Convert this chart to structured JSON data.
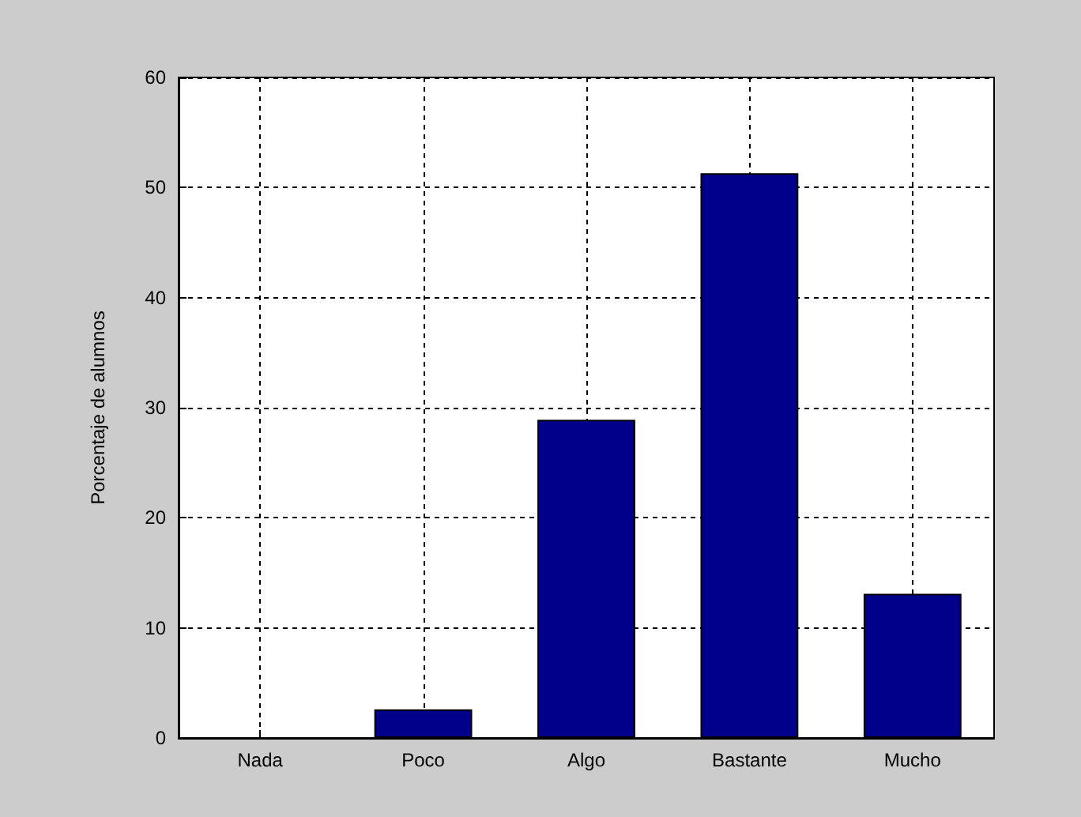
{
  "chart_data": {
    "type": "bar",
    "ylabel": "Porcentaje de alumnos",
    "categories": [
      "Nada",
      "Poco",
      "Algo",
      "Bastante",
      "Mucho"
    ],
    "values": [
      0,
      2.6,
      28.9,
      51.3,
      13.1
    ],
    "color": "#00008b",
    "ylim": [
      0,
      60
    ],
    "yticks": [
      0,
      10,
      20,
      30,
      40,
      50,
      60
    ],
    "grid": true
  }
}
